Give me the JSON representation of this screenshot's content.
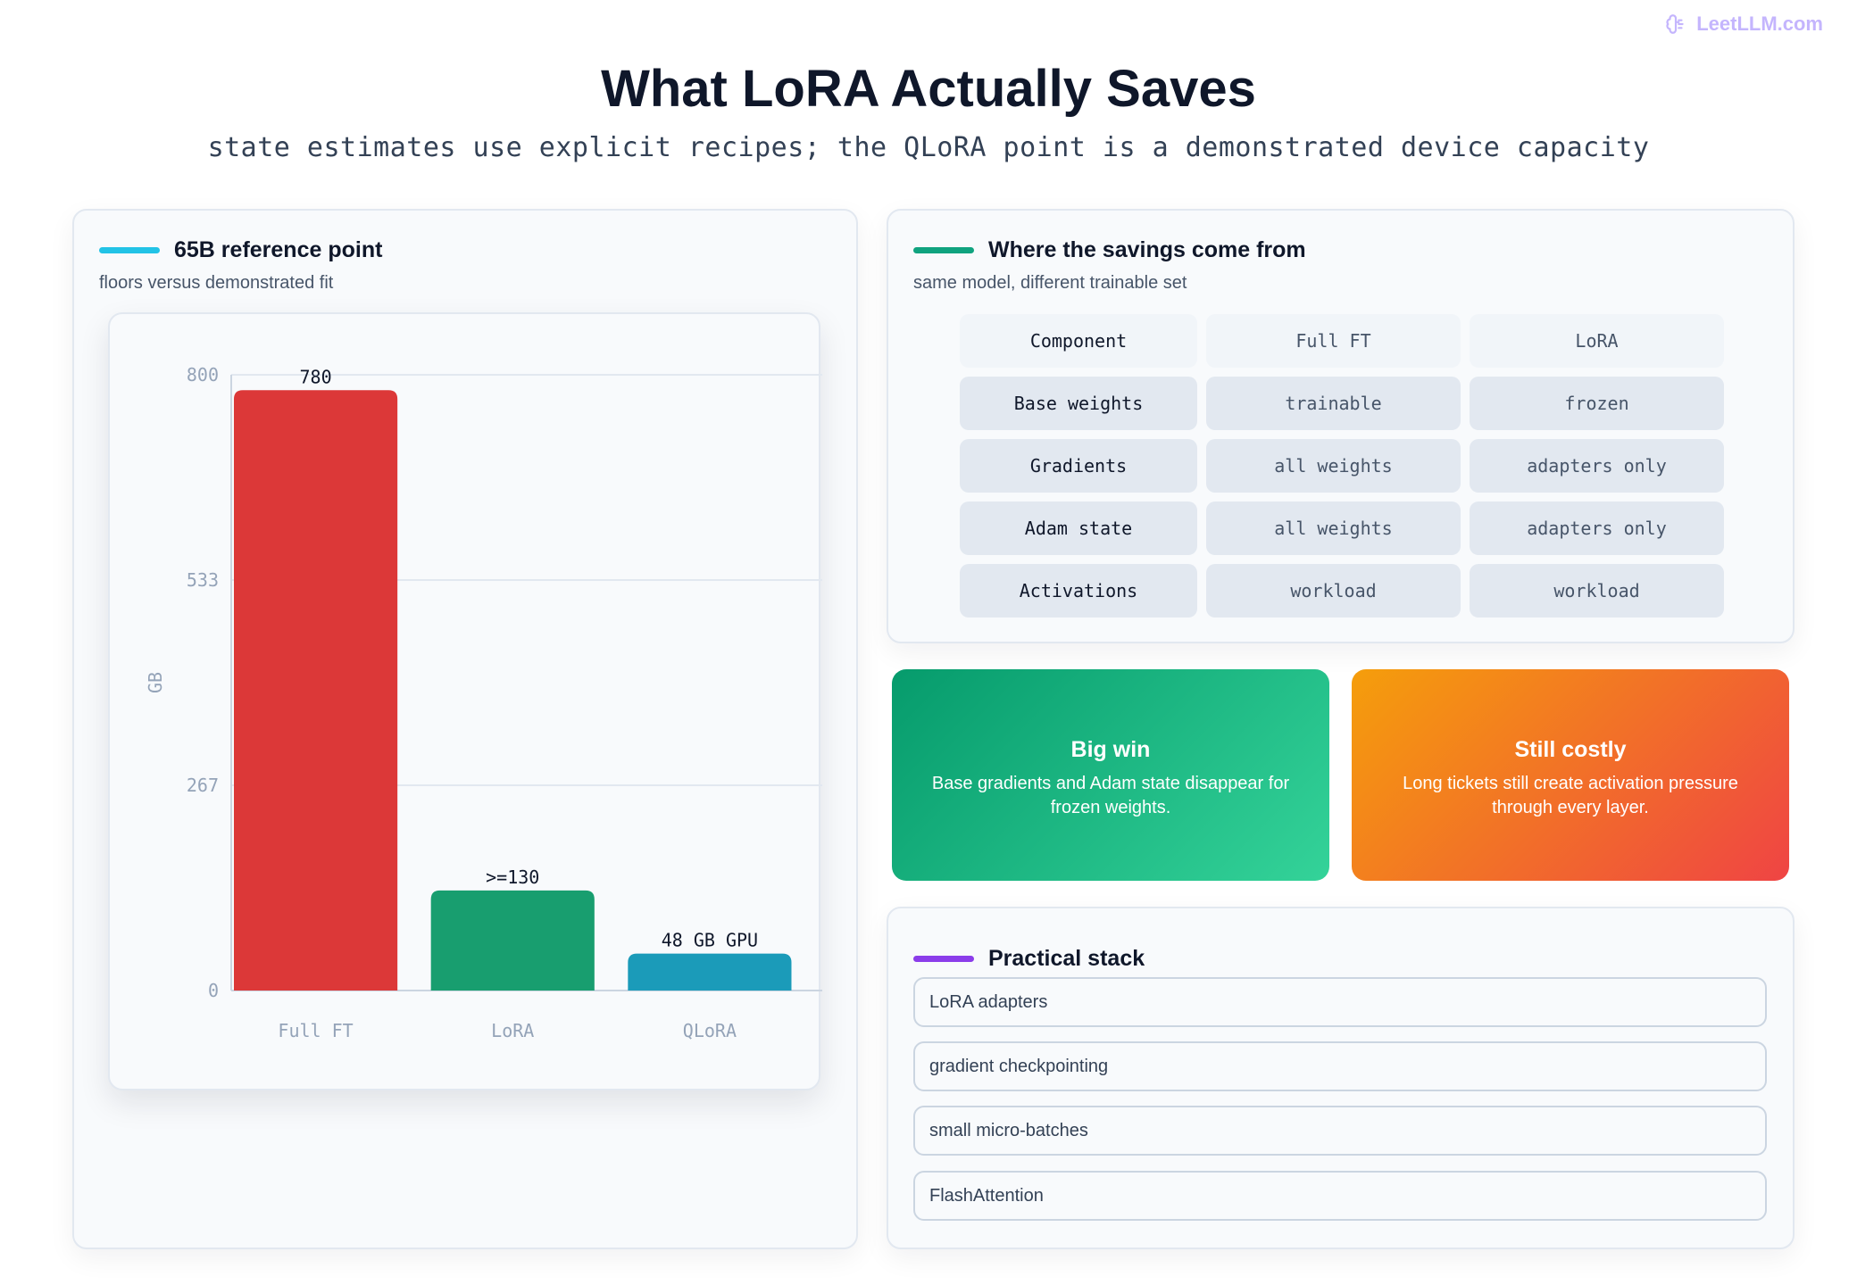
{
  "brand": {
    "text": "LeetLLM.com",
    "icon": "brain-icon"
  },
  "title": "What LoRA Actually Saves",
  "subtitle": "state estimates use explicit recipes; the QLoRA point is a demonstrated device capacity",
  "chart_panel": {
    "title": "65B reference point",
    "subtitle": "floors versus demonstrated fit",
    "accent": "#22c3e6"
  },
  "chart_data": {
    "type": "bar",
    "title": "",
    "ylabel": "GB",
    "xlabel": "",
    "ylim": [
      0,
      800
    ],
    "yticks": [
      "0",
      "267",
      "533",
      "800"
    ],
    "categories": [
      "Full FT",
      "LoRA",
      "QLoRA"
    ],
    "values": [
      780,
      130,
      48
    ],
    "data_labels": [
      "780",
      ">=130",
      "48 GB GPU"
    ],
    "colors": [
      "#dc3838",
      "#189e6f",
      "#1b9bb9"
    ],
    "grid": true
  },
  "savings_panel": {
    "title": "Where the savings come from",
    "subtitle": "same model, different trainable set",
    "accent": "#10a37f",
    "columns": [
      "Component",
      "Full FT",
      "LoRA"
    ],
    "rows": [
      [
        "Base weights",
        "trainable",
        "frozen"
      ],
      [
        "Gradients",
        "all weights",
        "adapters only"
      ],
      [
        "Adam state",
        "all weights",
        "adapters only"
      ],
      [
        "Activations",
        "workload",
        "workload"
      ]
    ]
  },
  "cards": [
    {
      "title": "Big win",
      "text": "Base gradients and Adam state disappear for frozen weights.",
      "from": "#069b6c",
      "to": "#34d399"
    },
    {
      "title": "Still costly",
      "text": "Long tickets still create activation pressure through every layer.",
      "from": "#f59e0b",
      "to": "#ef4444"
    }
  ],
  "stack_panel": {
    "title": "Practical stack",
    "accent": "#8b3dea",
    "items": [
      "LoRA adapters",
      "gradient checkpointing",
      "small micro-batches",
      "FlashAttention"
    ]
  }
}
